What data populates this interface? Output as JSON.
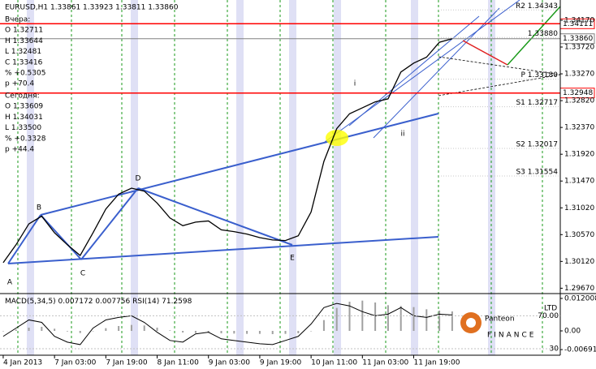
{
  "chart_data": [
    {
      "type": "line",
      "title": "EURUSD,H1  1.33861 1.33923 1.33811 1.33860",
      "info": {
        "yesterday": [
          "Вчера:",
          "O 1.32711",
          "H 1.33644",
          "L 1.32481",
          "C 1.33416",
          "% +0.5305",
          "p +70.4"
        ],
        "today": [
          "Сегодня:",
          "O 1.33609",
          "H 1.34031",
          "L 1.33500",
          "% +0.3328",
          "p +44.4"
        ]
      },
      "x": [
        0,
        4,
        8,
        12,
        16,
        20,
        24,
        28,
        32,
        36,
        40,
        44,
        48,
        52,
        56,
        60,
        64,
        68,
        72,
        76,
        80,
        84,
        88,
        92,
        96,
        100,
        104,
        108,
        112,
        116,
        120,
        124,
        128,
        132,
        136,
        140
      ],
      "values": [
        1.301,
        1.304,
        1.3075,
        1.3088,
        1.306,
        1.304,
        1.3022,
        1.306,
        1.31,
        1.3125,
        1.3135,
        1.313,
        1.311,
        1.3085,
        1.3072,
        1.3078,
        1.308,
        1.3065,
        1.3062,
        1.3058,
        1.3052,
        1.3048,
        1.3047,
        1.3055,
        1.3095,
        1.318,
        1.3235,
        1.326,
        1.327,
        1.328,
        1.3285,
        1.333,
        1.3345,
        1.3355,
        1.338,
        1.3386
      ],
      "color": "#000000",
      "xlim": [
        -1,
        173.7
      ],
      "xticks": [
        {
          "value": 0,
          "label": "4 Jan 2013"
        },
        {
          "value": 16,
          "label": "7 Jan 03:00"
        },
        {
          "value": 32,
          "label": "7 Jan 19:00"
        },
        {
          "value": 48,
          "label": "8 Jan 11:00"
        },
        {
          "value": 64,
          "label": "9 Jan 03:00"
        },
        {
          "value": 80,
          "label": "9 Jan 19:00"
        },
        {
          "value": 96,
          "label": "10 Jan 11:00"
        },
        {
          "value": 112,
          "label": "11 Jan 03:00"
        },
        {
          "value": 128,
          "label": "11 Jan 19:00"
        }
      ],
      "ylim": [
        1.2958,
        1.3451
      ],
      "yticks": [
        {
          "value": 1.3417,
          "label": "1.34170"
        },
        {
          "value": 1.3372,
          "label": "1.33720"
        },
        {
          "value": 1.3327,
          "label": "1.33270"
        },
        {
          "value": 1.3282,
          "label": "1.32820"
        },
        {
          "value": 1.3237,
          "label": "1.32370"
        },
        {
          "value": 1.3192,
          "label": "1.31920"
        },
        {
          "value": 1.3147,
          "label": "1.31470"
        },
        {
          "value": 1.3102,
          "label": "1.31020"
        },
        {
          "value": 1.3057,
          "label": "1.30570"
        },
        {
          "value": 1.3012,
          "label": "1.30120"
        },
        {
          "value": 1.2967,
          "label": "1.29670"
        }
      ],
      "levels": [
        {
          "value": 1.34111,
          "label": "1.34111",
          "color": "#ff0000"
        },
        {
          "value": 1.3386,
          "label": "1.33860",
          "color": "#808080"
        },
        {
          "value": 1.32948,
          "label": "1.32948",
          "color": "#ff0000"
        }
      ],
      "pivots": [
        {
          "value": 1.34343,
          "label": "R2 1.34343"
        },
        {
          "value": 1.3388,
          "label": "1.33880"
        },
        {
          "value": 1.3318,
          "label": "P 1.33180"
        },
        {
          "value": 1.32717,
          "label": "S1 1.32717"
        },
        {
          "value": 1.32017,
          "label": "S2 1.32017"
        },
        {
          "value": 1.31554,
          "label": "S3 1.31554"
        }
      ],
      "wave_labels": [
        "A",
        "B",
        "C",
        "D",
        "E",
        "i",
        "ii"
      ],
      "logo": [
        "Panteon",
        "FINANCE",
        "LTD"
      ]
    },
    {
      "type": "indicator",
      "series": [
        {
          "name": "MACD(5,34,5)",
          "color": "#a0a0a0",
          "title_values": "0.007172 0.007756",
          "values": [
            0,
            0.0005,
            0.0012,
            0.0015,
            0.0008,
            -0.0002,
            -0.0008,
            0,
            0.001,
            0.0018,
            0.0022,
            0.002,
            0.0012,
            0.0002,
            -0.0006,
            -0.0008,
            -0.0007,
            -0.0009,
            -0.001,
            -0.0011,
            -0.0011,
            -0.0012,
            -0.0011,
            -0.0009,
            0,
            0.004,
            0.0085,
            0.0108,
            0.0112,
            0.0105,
            0.0095,
            0.0092,
            0.0088,
            0.008,
            0.0075,
            0.0072
          ]
        },
        {
          "name": "RSI(14)",
          "color": "#000000",
          "axis": "y2",
          "title_values": "71.2598",
          "values": [
            45,
            55,
            65,
            62,
            45,
            38,
            35,
            55,
            65,
            68,
            70,
            62,
            50,
            40,
            38,
            48,
            50,
            42,
            40,
            38,
            36,
            35,
            40,
            45,
            60,
            80,
            85,
            82,
            75,
            70,
            72,
            80,
            70,
            68,
            72,
            71
          ]
        }
      ],
      "ylim": [
        -0.0072,
        0.0138
      ],
      "yticks": [
        0.012008,
        {
          "value": 0,
          "label": "0.00"
        },
        {
          "value": -0.006914,
          "label": "-0.006914"
        }
      ],
      "y2lim": [
        28,
        97
      ],
      "y2ticks": [
        {
          "value": 70,
          "label": "70.00"
        },
        30
      ]
    }
  ]
}
